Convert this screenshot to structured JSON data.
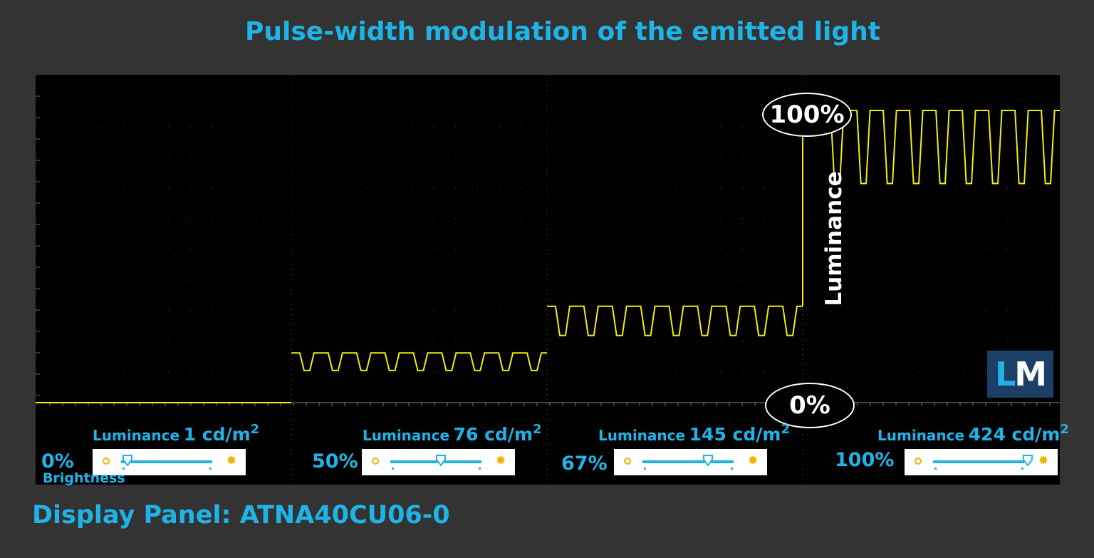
{
  "title": "Pulse-width modulation of the emitted light",
  "panel_label": "Display Panel: ATNA40CU06-0",
  "logo": {
    "first": "L",
    "second": "M"
  },
  "axis_label": "Luminance",
  "markers": {
    "top": "100%",
    "bottom": "0%"
  },
  "brightness_word": "Brightness",
  "segments": [
    {
      "brightness": "0%",
      "lum_word": "Luminance",
      "lum_value": "1 cd/m",
      "unit_exp": "2",
      "slider_position": 0.0
    },
    {
      "brightness": "50%",
      "lum_word": "Luminance",
      "lum_value": "76 cd/m",
      "unit_exp": "2",
      "slider_position": 0.5
    },
    {
      "brightness": "67%",
      "lum_word": "Luminance",
      "lum_value": "145 cd/m",
      "unit_exp": "2",
      "slider_position": 0.67
    },
    {
      "brightness": "100%",
      "lum_word": "Luminance",
      "lum_value": "424 cd/m",
      "unit_exp": "2",
      "slider_position": 1.0
    }
  ],
  "colors": {
    "accent": "#1fb4e8",
    "trace": "#f0f000",
    "background": "#333333",
    "scope": "#000000",
    "logo_bg": "#1b3f66"
  },
  "chart_data": {
    "type": "line",
    "title": "Pulse-width modulation of the emitted light",
    "ylabel": "Luminance",
    "ylim": [
      0,
      100
    ],
    "grid": true,
    "series": [
      {
        "brightness": "0%",
        "high": 0,
        "low": 0,
        "pulses": 0
      },
      {
        "brightness": "50%",
        "high": 17,
        "low": 11,
        "pulses": 9
      },
      {
        "brightness": "67%",
        "high": 33,
        "low": 23,
        "pulses": 9
      },
      {
        "brightness": "100%",
        "high": 100,
        "low": 75,
        "pulses": 9
      }
    ]
  }
}
